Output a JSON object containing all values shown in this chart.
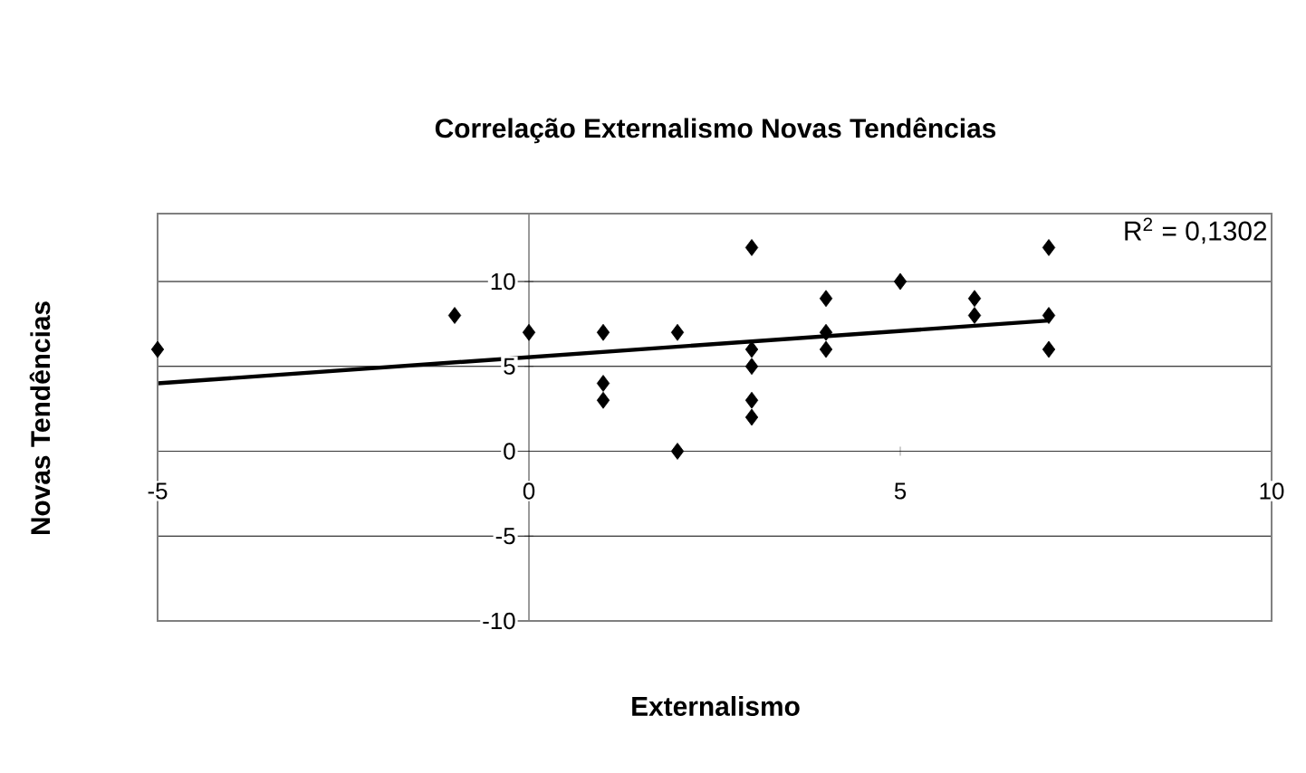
{
  "chart_data": {
    "type": "scatter",
    "title": "Correlação Externalismo Novas Tendências",
    "xlabel": "Externalismo",
    "ylabel": "Novas Tendências",
    "annotations": [
      "R$^{2}$ = 0,1302"
    ],
    "series": [
      {
        "color": "#000000",
        "marker": "diamond",
        "x": [
          -5,
          -1,
          0,
          1,
          1,
          1,
          2,
          2,
          3,
          3,
          3,
          3,
          3,
          4,
          4,
          4,
          5,
          6,
          6,
          7,
          7,
          7
        ],
        "values": [
          6,
          8,
          7,
          7,
          4,
          3,
          7,
          0,
          12,
          6,
          5,
          3,
          2,
          9,
          7,
          6,
          10,
          9,
          8,
          12,
          8,
          6
        ]
      },
      {
        "type": "line",
        "color": "#000000",
        "marker": "none",
        "x": [
          -5,
          7
        ],
        "values": [
          4.0,
          7.7
        ]
      }
    ],
    "xlim": [
      -5,
      10
    ],
    "ylim": [
      -10,
      14
    ],
    "xticks": [
      -5,
      0,
      5,
      10
    ],
    "yticks": [
      -10,
      -5,
      0,
      5,
      10
    ],
    "grid": "y"
  }
}
